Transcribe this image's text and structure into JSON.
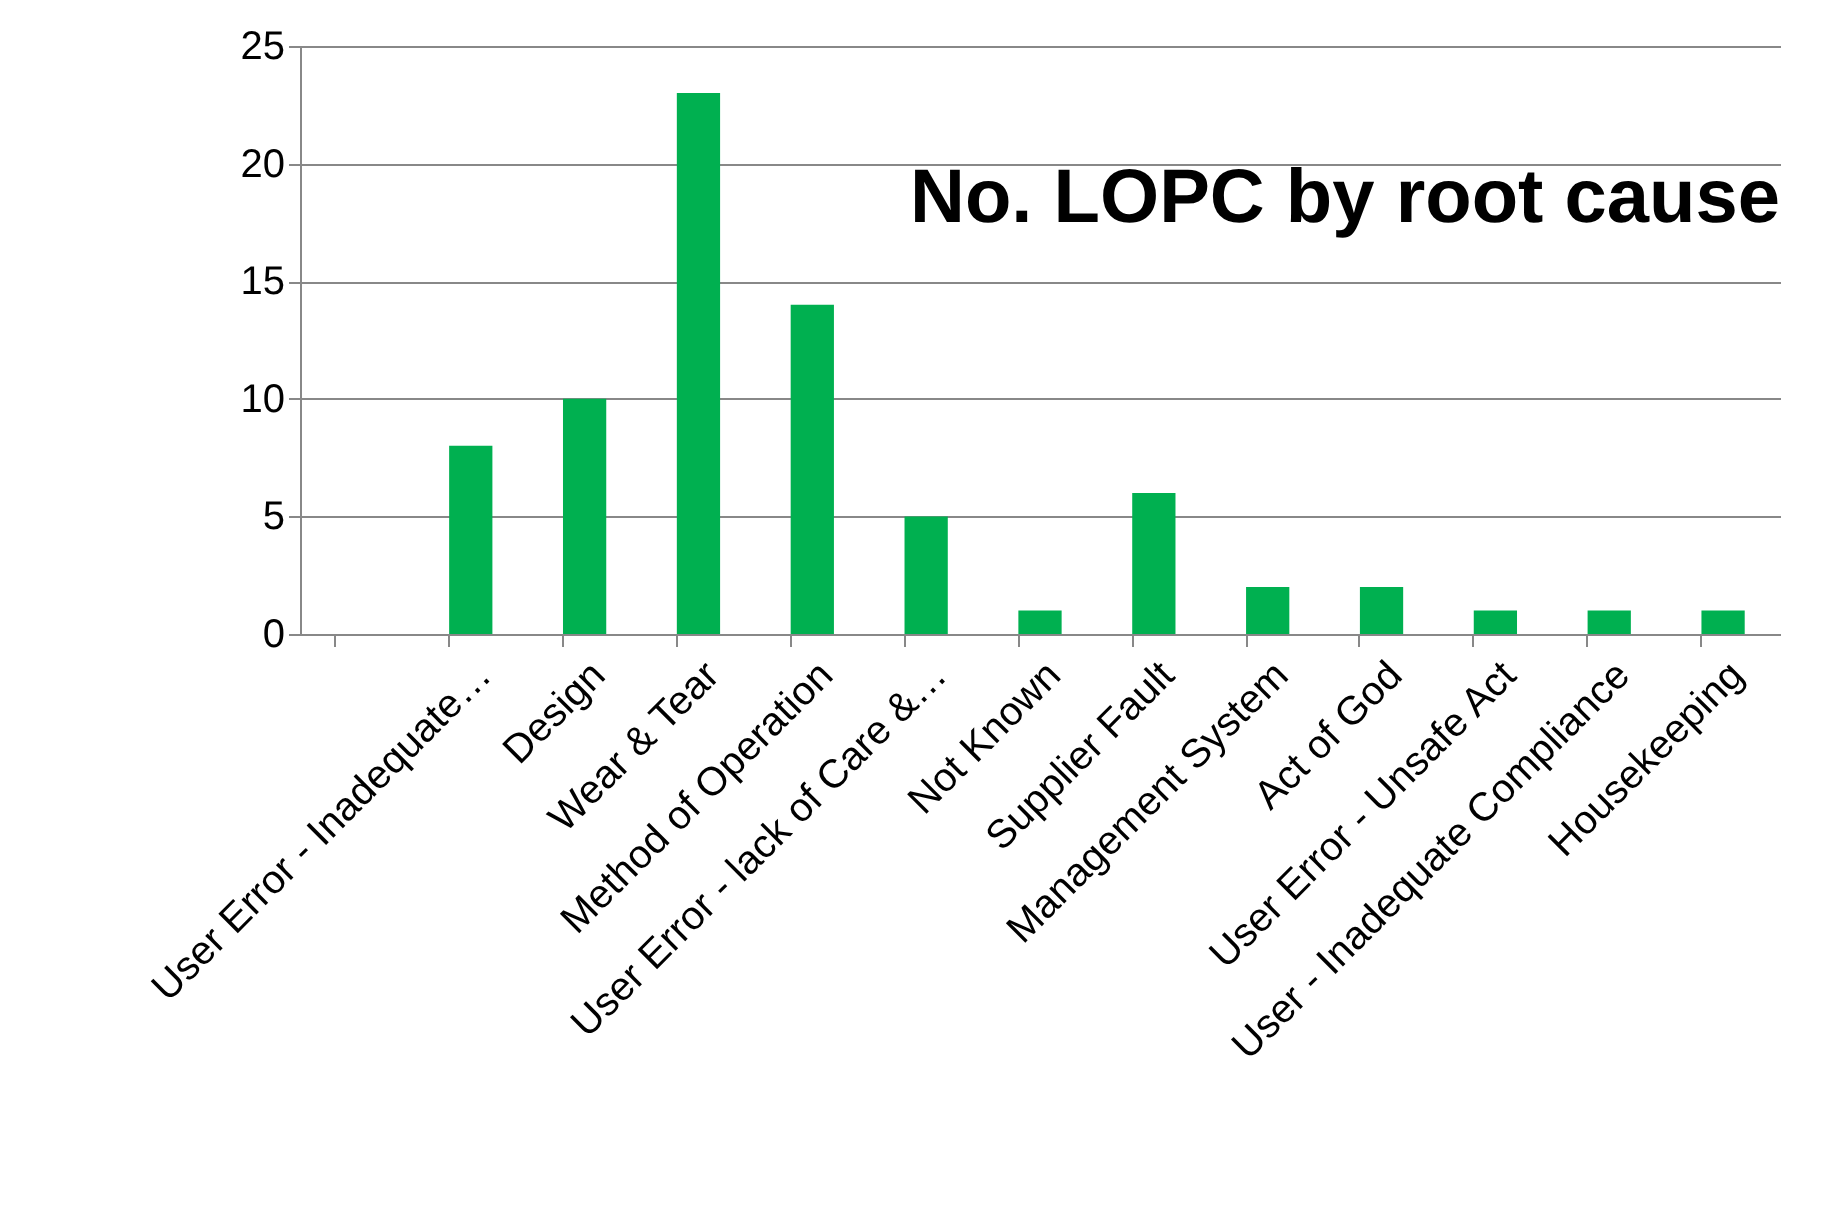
{
  "chart_data": {
    "type": "bar",
    "title": "No. LOPC by root cause",
    "categories": [
      null,
      "User Error - Inadequate…",
      "Design",
      "Wear & Tear",
      "Method of Operation",
      "User Error - lack of Care &…",
      "Not Known",
      "Supplier Fault",
      "Management System",
      "Act of God",
      "User Error - Unsafe Act",
      "User - Inadequate Compliance",
      "Housekeeping"
    ],
    "values": [
      null,
      8,
      10,
      23,
      14,
      5,
      1,
      6,
      2,
      2,
      1,
      1,
      1
    ],
    "color": "#00b050",
    "ylim": [
      0,
      25
    ],
    "yticks": [
      0,
      5,
      10,
      15,
      20,
      25
    ],
    "grid": "y"
  }
}
